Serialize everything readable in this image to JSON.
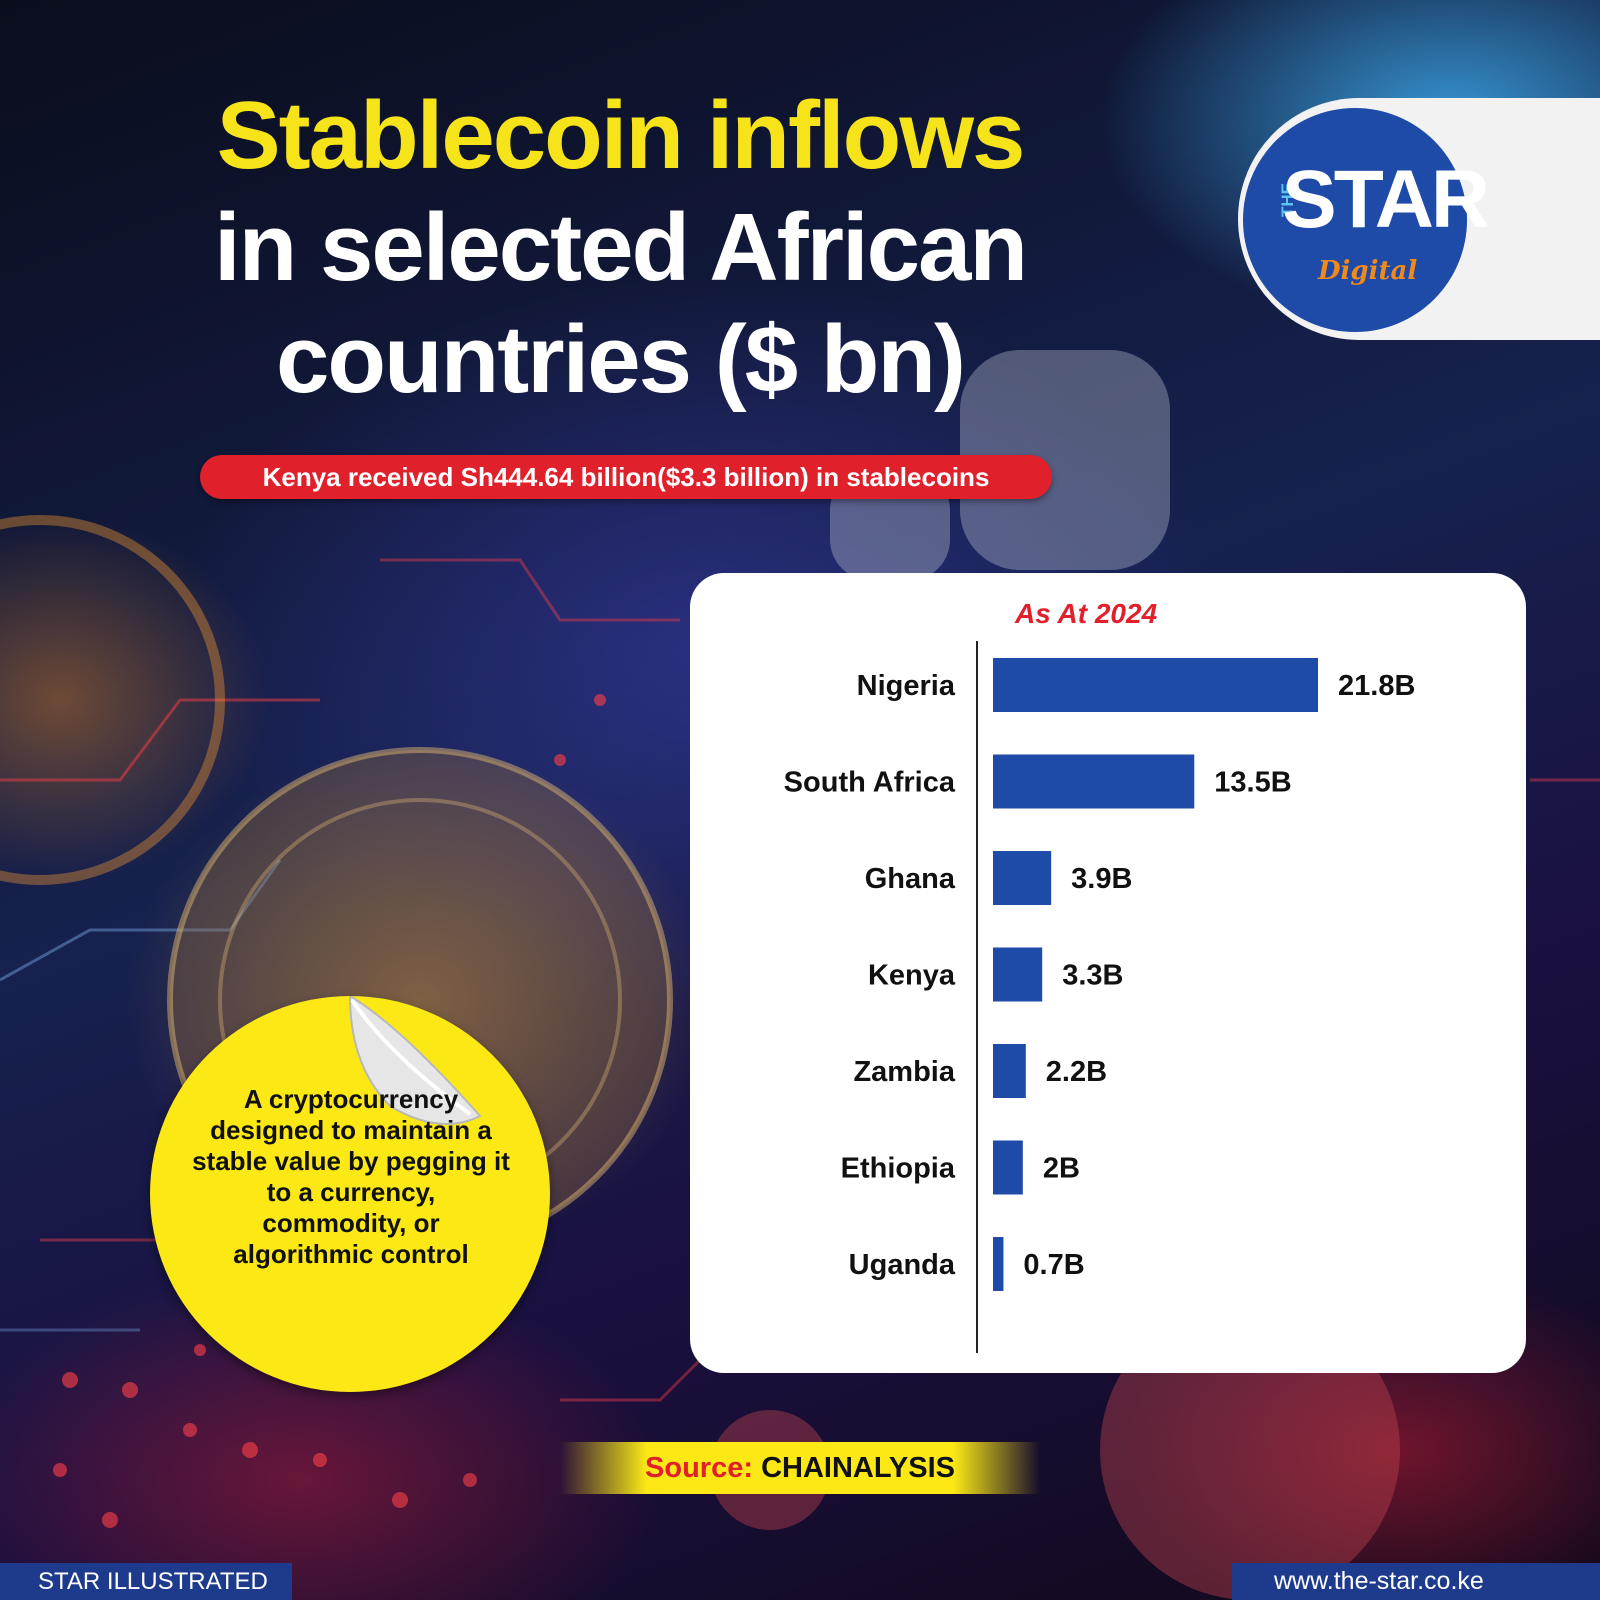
{
  "title": {
    "line1": "Stablecoin inflows",
    "line2": "in selected African",
    "line3": "countries ($ bn)"
  },
  "highlight": "Kenya received Sh444.64 billion($3.3 billion) in stablecoins",
  "logo": {
    "the": "THE",
    "star": "STAR",
    "digital": "Digital"
  },
  "sticker_text": "A cryptocurrency designed to maintain a stable value by pegging it to a currency, commodity, or algorithmic control",
  "source": {
    "label": "Source:",
    "value": "CHAINALYSIS"
  },
  "footer": {
    "left": "STAR ILLUSTRATED",
    "right": "www.the-star.co.ke"
  },
  "colors": {
    "bar": "#1e4aa8",
    "accent_red": "#e0202a",
    "accent_yellow": "#f7e31a"
  },
  "chart_data": {
    "type": "bar",
    "orientation": "horizontal",
    "subtitle": "As At 2024",
    "categories": [
      "Nigeria",
      "South Africa",
      "Ghana",
      "Kenya",
      "Zambia",
      "Ethiopia",
      "Uganda"
    ],
    "values": [
      21.8,
      13.5,
      3.9,
      3.3,
      2.2,
      2,
      0.7
    ],
    "data_labels": [
      "21.8B",
      "13.5B",
      "3.9B",
      "3.3B",
      "2.2B",
      "2B",
      "0.7B"
    ],
    "xlim": [
      0,
      21.8
    ]
  }
}
